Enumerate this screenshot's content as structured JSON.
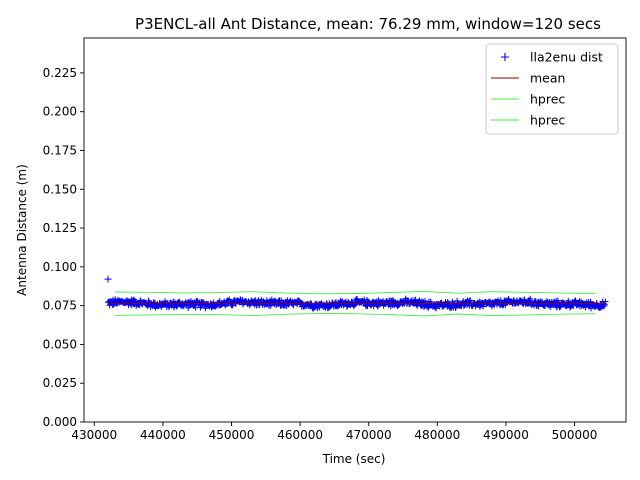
{
  "chart_data": {
    "type": "scatter",
    "title": "P3ENCL-all Ant Distance, mean: 76.29 mm, window=120 secs",
    "xlabel": "Time (sec)",
    "ylabel": "Antenna Distance (m)",
    "xlim": [
      428500,
      507500
    ],
    "ylim": [
      0.0,
      0.2475
    ],
    "xticks": [
      430000,
      440000,
      450000,
      460000,
      470000,
      480000,
      490000,
      500000
    ],
    "yticks": [
      0.0,
      0.025,
      0.05,
      0.075,
      0.1,
      0.125,
      0.15,
      0.175,
      0.2,
      0.225
    ],
    "ytick_labels": [
      "0.000",
      "0.025",
      "0.050",
      "0.075",
      "0.100",
      "0.125",
      "0.150",
      "0.175",
      "0.200",
      "0.225"
    ],
    "grid": false,
    "legend_position": "top-right",
    "series": [
      {
        "name": "lla2enu dist",
        "style": "markers",
        "marker": "+",
        "color": "#0000ff",
        "x_range": [
          432000,
          504500
        ],
        "baseline": 0.0763,
        "spread": 0.0027,
        "outlier": {
          "x": 432000,
          "y": 0.0921
        }
      },
      {
        "name": "mean",
        "style": "line",
        "color": "#8b0000",
        "x": [
          432000,
          504500
        ],
        "y": [
          0.0763,
          0.0763
        ]
      },
      {
        "name": "hprec",
        "style": "line",
        "color": "#44ee44",
        "x": [
          433000,
          438000,
          443000,
          448000,
          453000,
          458000,
          463000,
          468000,
          473000,
          478000,
          483000,
          488000,
          493000,
          498000,
          503000
        ],
        "y": [
          0.0838,
          0.0836,
          0.0832,
          0.0834,
          0.084,
          0.0831,
          0.0826,
          0.0828,
          0.0834,
          0.0842,
          0.083,
          0.084,
          0.0836,
          0.0831,
          0.0828
        ]
      },
      {
        "name": "hprec",
        "style": "line",
        "color": "#44ee44",
        "x": [
          433000,
          438000,
          443000,
          448000,
          453000,
          458000,
          463000,
          468000,
          473000,
          478000,
          483000,
          488000,
          493000,
          498000,
          503000
        ],
        "y": [
          0.0688,
          0.069,
          0.0694,
          0.0692,
          0.0686,
          0.0695,
          0.07,
          0.0698,
          0.0692,
          0.0684,
          0.0696,
          0.0686,
          0.069,
          0.0695,
          0.0698
        ]
      }
    ]
  }
}
